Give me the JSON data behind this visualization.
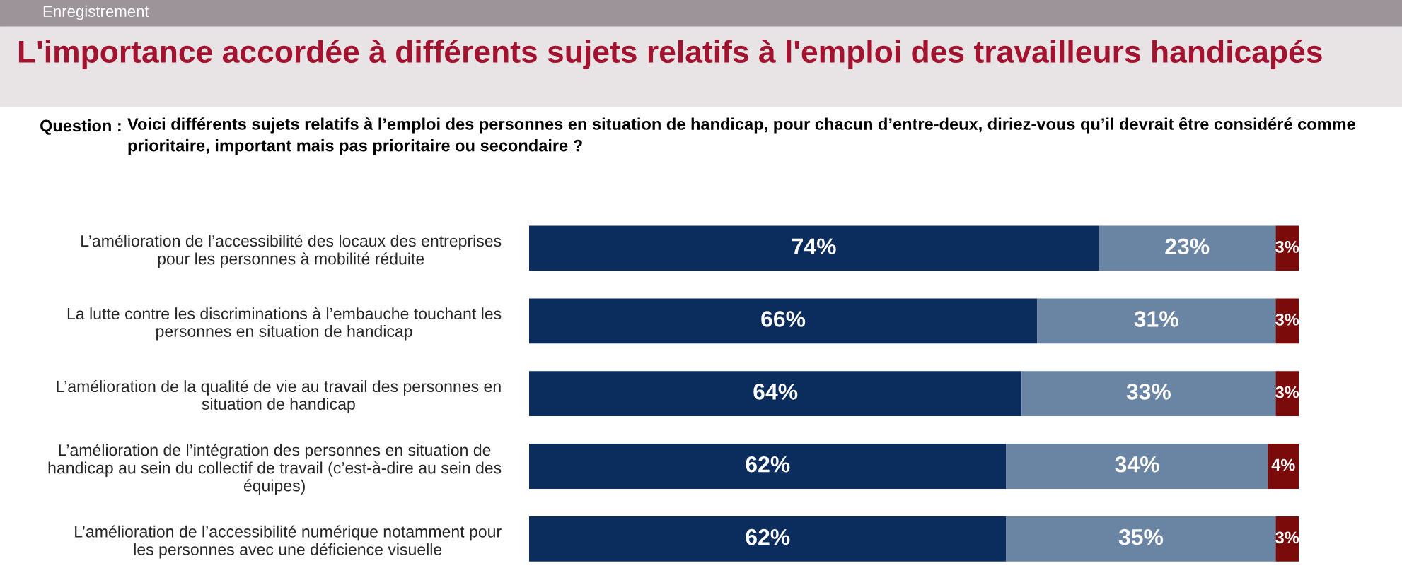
{
  "chart_data": {
    "type": "bar",
    "orientation": "horizontal",
    "stacked": true,
    "title": "L'importance accordée à différents sujets relatifs à l'emploi des travailleurs handicapés",
    "subtitle": "Voici différents sujets relatifs à l’emploi des personnes en situation de handicap, pour chacun d’entre-deux, diriez-vous qu’il devrait être considéré comme\nprioritaire, important mais pas prioritaire ou secondaire ?",
    "annotations": [
      "Enregistrement",
      "Question :"
    ],
    "categories": [
      "L’amélioration de l’accessibilité des locaux des entreprises\npour les personnes à mobilité réduite",
      "La lutte contre les discriminations à l’embauche touchant les\npersonnes en situation de handicap",
      "L’amélioration de la qualité de vie au travail des personnes en\nsituation de handicap",
      "L’amélioration de l’intégration des personnes en situation de\nhandicap au sein du collectif de travail (c’est-à-dire au sein des\néquipes)",
      "L’amélioration de l’accessibilité numérique notamment pour\nles personnes avec une déficience visuelle"
    ],
    "series": [
      {
        "color": "#0b2d5e",
        "values": [
          74,
          66,
          64,
          62,
          62
        ],
        "value_labels": [
          "74%",
          "66%",
          "64%",
          "62%",
          "62%"
        ]
      },
      {
        "color": "#6a84a3",
        "values": [
          23,
          31,
          33,
          34,
          35
        ],
        "value_labels": [
          "23%",
          "31%",
          "33%",
          "34%",
          "35%"
        ]
      },
      {
        "color": "#7b0a0a",
        "values": [
          3,
          3,
          3,
          4,
          3
        ],
        "value_labels": [
          "3%",
          "3%",
          "3%",
          "4%",
          "3%"
        ]
      }
    ],
    "tick_labels": "y"
  }
}
